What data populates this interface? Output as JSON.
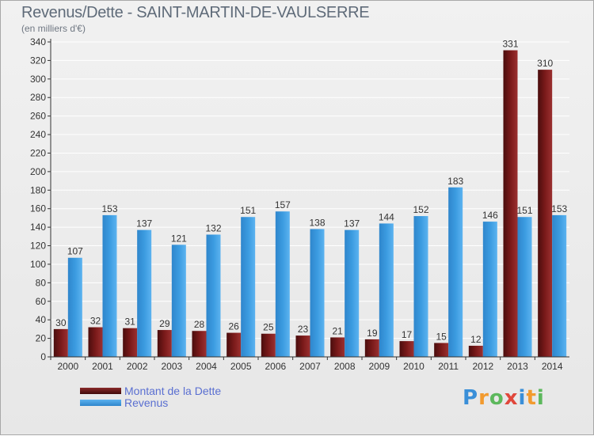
{
  "title": "Revenus/Dette - SAINT-MARTIN-DE-VAULSERRE",
  "subtitle": "(en milliers d'€)",
  "logo": {
    "text": "Proxiti",
    "colors": [
      "#3a8fd8",
      "#f29a2e",
      "#5cb85c",
      "#e0473b",
      "#3a8fd8",
      "#f29a2e",
      "#5cb85c"
    ]
  },
  "colors": {
    "dette": "#7a1a1a",
    "revenus": "#3b9be0",
    "axis": "#333333",
    "grid": "#ffffff"
  },
  "chart_data": {
    "type": "bar",
    "categories": [
      "2000",
      "2001",
      "2002",
      "2003",
      "2004",
      "2005",
      "2006",
      "2007",
      "2008",
      "2009",
      "2010",
      "2011",
      "2012",
      "2013",
      "2014"
    ],
    "series": [
      {
        "name": "Montant de la Dette",
        "values": [
          30,
          32,
          31,
          29,
          28,
          26,
          25,
          23,
          21,
          19,
          17,
          15,
          12,
          331,
          310
        ]
      },
      {
        "name": "Revenus",
        "values": [
          107,
          153,
          137,
          121,
          132,
          151,
          157,
          138,
          137,
          144,
          152,
          183,
          146,
          151,
          153
        ]
      }
    ],
    "ylim": [
      0,
      340
    ],
    "yticks": [
      0,
      20,
      40,
      60,
      80,
      100,
      120,
      140,
      160,
      180,
      200,
      220,
      240,
      260,
      280,
      300,
      320,
      340
    ],
    "grid": true,
    "legend": "bottom-left"
  }
}
